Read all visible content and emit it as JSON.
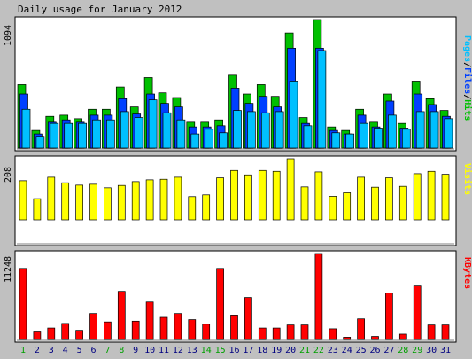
{
  "chart_data": {
    "type": "bar",
    "title": "Daily usage for January 2012",
    "categories": [
      "1",
      "2",
      "3",
      "4",
      "5",
      "6",
      "7",
      "8",
      "9",
      "10",
      "11",
      "12",
      "13",
      "14",
      "15",
      "16",
      "17",
      "18",
      "19",
      "20",
      "21",
      "22",
      "23",
      "24",
      "25",
      "26",
      "27",
      "28",
      "29",
      "30",
      "31"
    ],
    "weekend_days": [
      "1",
      "7",
      "8",
      "14",
      "15",
      "21",
      "22",
      "28",
      "29"
    ],
    "colors": {
      "hits": "#00c000",
      "files": "#0040ff",
      "pages": "#00c0ff",
      "visits": "#ffff00",
      "kbytes": "#ff0000",
      "weekday_label": "#000080",
      "weekend_label": "#00a000"
    },
    "panels": [
      {
        "id": "hits",
        "max_label": "1094",
        "legend": [
          {
            "text": "Pages",
            "color": "#00c0ff"
          },
          {
            "text": "/",
            "color": "#000000"
          },
          {
            "text": "Files",
            "color": "#0040ff"
          },
          {
            "text": "/",
            "color": "#000000"
          },
          {
            "text": "Hits",
            "color": "#00c000"
          }
        ],
        "ylim": [
          0,
          1094
        ],
        "series": [
          {
            "name": "Hits",
            "values": [
              540,
              150,
              270,
              280,
              250,
              330,
              330,
              520,
              350,
              600,
              470,
              430,
              220,
              220,
              240,
              620,
              460,
              540,
              440,
              980,
              260,
              1094,
              180,
              150,
              330,
              220,
              460,
              210,
              570,
              420,
              320
            ]
          },
          {
            "name": "Files",
            "values": [
              460,
              120,
              220,
              240,
              220,
              280,
              280,
              420,
              290,
              460,
              380,
              350,
              180,
              180,
              190,
              510,
              380,
              440,
              350,
              850,
              210,
              850,
              150,
              120,
              280,
              180,
              400,
              170,
              460,
              370,
              270
            ]
          },
          {
            "name": "Pages",
            "values": [
              330,
              100,
              210,
              210,
              210,
              240,
              240,
              310,
              260,
              410,
              300,
              240,
              120,
              160,
              130,
              320,
              310,
              300,
              310,
              570,
              190,
              830,
              130,
              120,
              210,
              170,
              280,
              160,
              310,
              310,
              250
            ]
          }
        ]
      },
      {
        "id": "visits",
        "max_label": "208",
        "legend": [
          {
            "text": "Visits",
            "color": "#ffff00"
          }
        ],
        "ylim": [
          0,
          208
        ],
        "series": [
          {
            "name": "Visits",
            "values": [
              133,
              72,
              145,
              126,
              118,
              121,
              109,
              117,
              130,
              136,
              138,
              145,
              79,
              85,
              143,
              168,
              153,
              168,
              165,
              208,
              112,
              163,
              80,
              92,
              145,
              111,
              143,
              114,
              157,
              165,
              155
            ]
          }
        ]
      },
      {
        "id": "kbytes",
        "max_label": "11248",
        "legend": [
          {
            "text": "KBytes",
            "color": "#ff0000"
          }
        ],
        "ylim": [
          0,
          11248
        ],
        "series": [
          {
            "name": "KBytes",
            "values": [
              9300,
              1100,
              1500,
              2100,
              1200,
              3400,
              2300,
              6300,
              2400,
              4900,
              2900,
              3400,
              2600,
              2000,
              9300,
              3200,
              5500,
              1500,
              1500,
              1900,
              1900,
              11248,
              1400,
              300,
              2700,
              400,
              6100,
              700,
              7000,
              1900,
              1900
            ]
          }
        ]
      }
    ]
  }
}
